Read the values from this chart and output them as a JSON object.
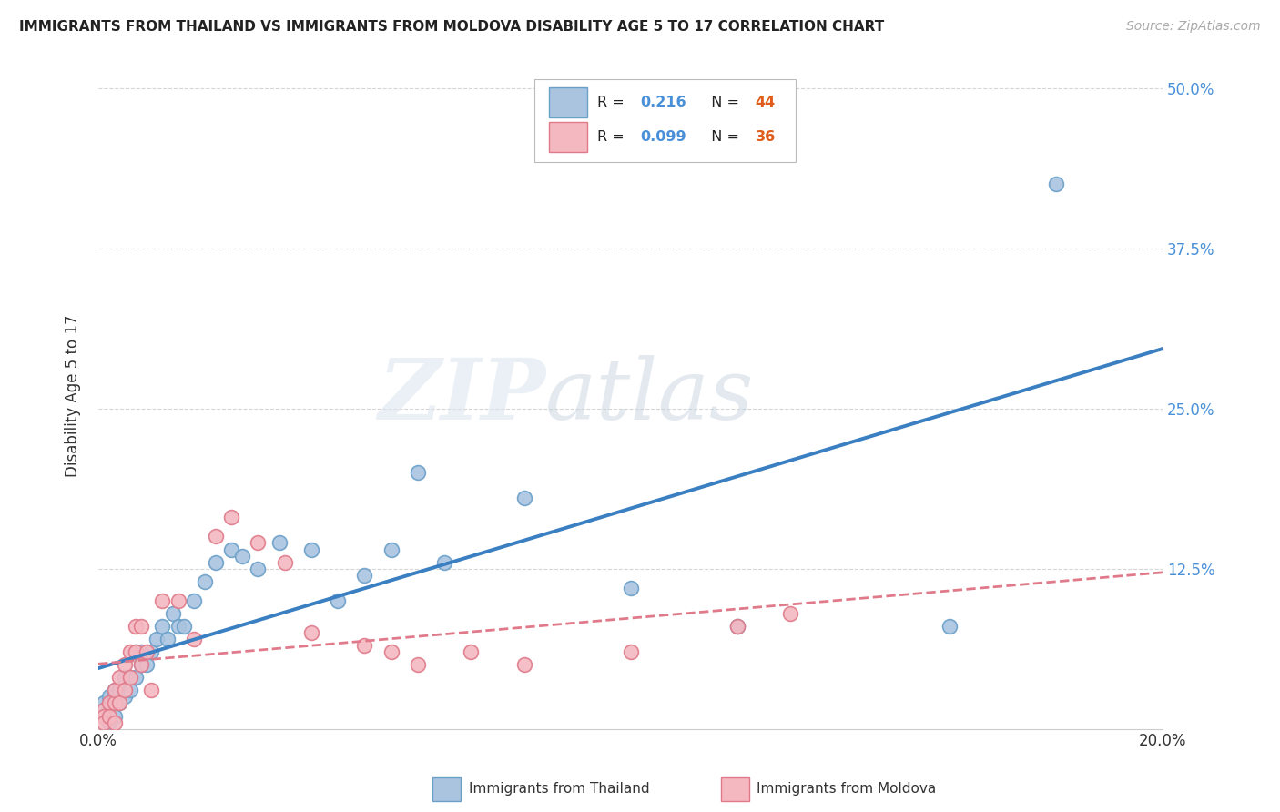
{
  "title": "IMMIGRANTS FROM THAILAND VS IMMIGRANTS FROM MOLDOVA DISABILITY AGE 5 TO 17 CORRELATION CHART",
  "source": "Source: ZipAtlas.com",
  "ylabel": "Disability Age 5 to 17",
  "xlim": [
    0.0,
    0.2
  ],
  "ylim": [
    0.0,
    0.52
  ],
  "grid_color": "#cccccc",
  "thailand_color": "#aac4e0",
  "thailand_edge": "#6a9fc8",
  "moldova_color": "#f4b8c1",
  "moldova_edge": "#e07a8a",
  "thailand_line_color": "#3a7fc1",
  "moldova_line_color": "#e07a8a",
  "legend_r_thailand": "R =  0.216",
  "legend_n_thailand": "N = 44",
  "legend_r_moldova": "R =  0.099",
  "legend_n_moldova": "N = 36",
  "stat_color": "#4a90d9",
  "n_color": "#e05c1a",
  "watermark_zip": "ZIP",
  "watermark_atlas": "atlas",
  "watermark_color": "#d0dde8",
  "thailand_scatter_x": [
    0.001,
    0.001,
    0.002,
    0.002,
    0.002,
    0.003,
    0.003,
    0.003,
    0.004,
    0.004,
    0.005,
    0.005,
    0.006,
    0.006,
    0.007,
    0.007,
    0.008,
    0.008,
    0.009,
    0.01,
    0.011,
    0.012,
    0.013,
    0.014,
    0.015,
    0.016,
    0.018,
    0.02,
    0.022,
    0.025,
    0.027,
    0.03,
    0.034,
    0.04,
    0.045,
    0.05,
    0.055,
    0.06,
    0.065,
    0.08,
    0.1,
    0.12,
    0.16,
    0.18
  ],
  "thailand_scatter_y": [
    0.02,
    0.015,
    0.025,
    0.01,
    0.005,
    0.03,
    0.025,
    0.01,
    0.03,
    0.02,
    0.04,
    0.025,
    0.04,
    0.03,
    0.04,
    0.06,
    0.05,
    0.06,
    0.05,
    0.06,
    0.07,
    0.08,
    0.07,
    0.09,
    0.08,
    0.08,
    0.1,
    0.115,
    0.13,
    0.14,
    0.135,
    0.125,
    0.145,
    0.14,
    0.1,
    0.12,
    0.14,
    0.2,
    0.13,
    0.18,
    0.11,
    0.08,
    0.08,
    0.425
  ],
  "moldova_scatter_x": [
    0.001,
    0.001,
    0.001,
    0.002,
    0.002,
    0.003,
    0.003,
    0.003,
    0.004,
    0.004,
    0.005,
    0.005,
    0.006,
    0.006,
    0.007,
    0.007,
    0.008,
    0.008,
    0.009,
    0.01,
    0.012,
    0.015,
    0.018,
    0.022,
    0.025,
    0.03,
    0.035,
    0.04,
    0.05,
    0.055,
    0.06,
    0.07,
    0.08,
    0.1,
    0.12,
    0.13
  ],
  "moldova_scatter_y": [
    0.015,
    0.01,
    0.005,
    0.02,
    0.01,
    0.02,
    0.03,
    0.005,
    0.04,
    0.02,
    0.05,
    0.03,
    0.06,
    0.04,
    0.08,
    0.06,
    0.08,
    0.05,
    0.06,
    0.03,
    0.1,
    0.1,
    0.07,
    0.15,
    0.165,
    0.145,
    0.13,
    0.075,
    0.065,
    0.06,
    0.05,
    0.06,
    0.05,
    0.06,
    0.08,
    0.09
  ]
}
